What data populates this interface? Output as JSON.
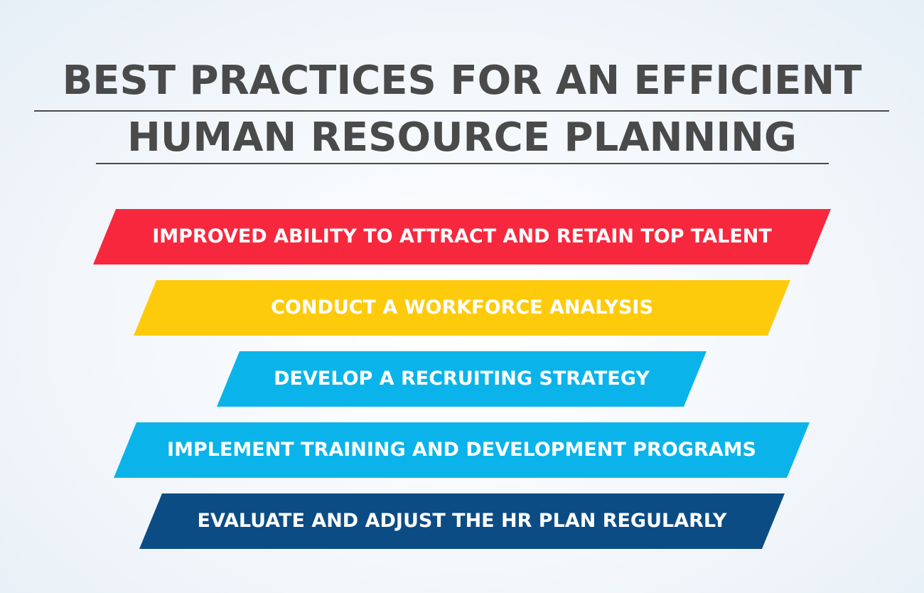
{
  "title": {
    "line1": "BEST PRACTICES FOR AN EFFICIENT",
    "line2": "HUMAN RESOURCE PLANNING"
  },
  "items": [
    {
      "label": "IMPROVED ABILITY TO ATTRACT AND RETAIN TOP TALENT",
      "color": "#f7283d"
    },
    {
      "label": "CONDUCT A WORKFORCE ANALYSIS",
      "color": "#fdcb0c"
    },
    {
      "label": "DEVELOP A RECRUITING STRATEGY",
      "color": "#0ab4ea"
    },
    {
      "label": "IMPLEMENT TRAINING AND DEVELOPMENT PROGRAMS",
      "color": "#0ab4ea"
    },
    {
      "label": "EVALUATE AND ADJUST THE HR PLAN REGULARLY",
      "color": "#0c4c84"
    }
  ]
}
